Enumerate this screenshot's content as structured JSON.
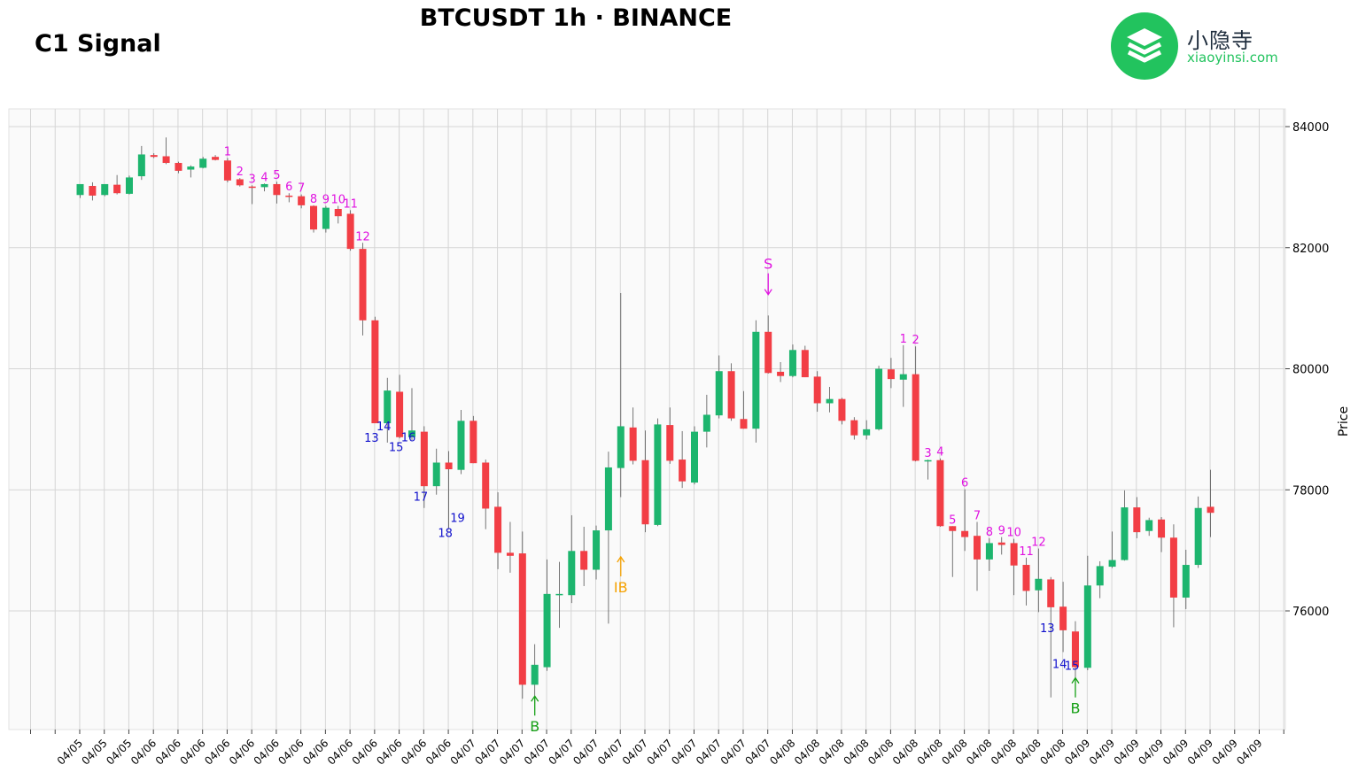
{
  "header": {
    "corner_title": "C1 Signal",
    "title": "BTCUSDT 1h · BINANCE"
  },
  "logo": {
    "cn_text": "小隐寺",
    "en_text": "xiaoyinsi.com",
    "color": "#22c35e"
  },
  "colors": {
    "up": "#1db56e",
    "down": "#f23e45",
    "count_up": "#e012e0",
    "count_down": "#1010cc",
    "buy": "#16a016",
    "sell": "#e012e0",
    "ib": "#f5a100"
  },
  "chart_data": {
    "type": "candlestick",
    "title": "BTCUSDT 1h · BINANCE",
    "ylabel": "Price",
    "ylim": [
      74200,
      84300
    ],
    "y_ticks": [
      76000,
      78000,
      80000,
      82000,
      84000
    ],
    "grid": true,
    "x_tick_labels": [
      "04/05",
      "04/05",
      "04/05",
      "04/06",
      "04/06",
      "04/06",
      "04/06",
      "04/06",
      "04/06",
      "04/06",
      "04/06",
      "04/06",
      "04/06",
      "04/06",
      "04/06",
      "04/06",
      "04/07",
      "04/07",
      "04/07",
      "04/07",
      "04/07",
      "04/07",
      "04/07",
      "04/07",
      "04/07",
      "04/07",
      "04/07",
      "04/07",
      "04/07",
      "04/08",
      "04/08",
      "04/08",
      "04/08",
      "04/08",
      "04/08",
      "04/08",
      "04/08",
      "04/08",
      "04/08",
      "04/08",
      "04/08",
      "04/09",
      "04/09",
      "04/09",
      "04/09",
      "04/09",
      "04/09",
      "04/09",
      "04/09"
    ],
    "candles": [
      {
        "o": 82870,
        "h": 83050,
        "l": 82820,
        "c": 83050
      },
      {
        "o": 83020,
        "h": 83080,
        "l": 82780,
        "c": 82860
      },
      {
        "o": 82870,
        "h": 83050,
        "l": 82850,
        "c": 83050
      },
      {
        "o": 83040,
        "h": 83200,
        "l": 82880,
        "c": 82900
      },
      {
        "o": 82890,
        "h": 83190,
        "l": 82880,
        "c": 83160
      },
      {
        "o": 83180,
        "h": 83680,
        "l": 83120,
        "c": 83540
      },
      {
        "o": 83530,
        "h": 83560,
        "l": 83480,
        "c": 83500
      },
      {
        "o": 83510,
        "h": 83820,
        "l": 83380,
        "c": 83400
      },
      {
        "o": 83400,
        "h": 83420,
        "l": 83230,
        "c": 83270
      },
      {
        "o": 83290,
        "h": 83360,
        "l": 83160,
        "c": 83340
      },
      {
        "o": 83320,
        "h": 83500,
        "l": 83310,
        "c": 83470
      },
      {
        "o": 83500,
        "h": 83530,
        "l": 83440,
        "c": 83450
      },
      {
        "o": 83440,
        "h": 83480,
        "l": 83080,
        "c": 83110
      },
      {
        "o": 83130,
        "h": 83150,
        "l": 83010,
        "c": 83030
      },
      {
        "o": 83010,
        "h": 83030,
        "l": 82720,
        "c": 83000
      },
      {
        "o": 83000,
        "h": 83060,
        "l": 82930,
        "c": 83050
      },
      {
        "o": 83050,
        "h": 83090,
        "l": 82730,
        "c": 82870
      },
      {
        "o": 82860,
        "h": 82900,
        "l": 82750,
        "c": 82850
      },
      {
        "o": 82850,
        "h": 82880,
        "l": 82650,
        "c": 82700
      },
      {
        "o": 82690,
        "h": 82700,
        "l": 82250,
        "c": 82300
      },
      {
        "o": 82310,
        "h": 82690,
        "l": 82250,
        "c": 82660
      },
      {
        "o": 82640,
        "h": 82690,
        "l": 82400,
        "c": 82520
      },
      {
        "o": 82560,
        "h": 82620,
        "l": 81950,
        "c": 81980
      },
      {
        "o": 81980,
        "h": 82080,
        "l": 80550,
        "c": 80800
      },
      {
        "o": 80800,
        "h": 80860,
        "l": 79100,
        "c": 79100
      },
      {
        "o": 79100,
        "h": 79850,
        "l": 78780,
        "c": 79640
      },
      {
        "o": 79620,
        "h": 79900,
        "l": 78850,
        "c": 78870
      },
      {
        "o": 78870,
        "h": 79680,
        "l": 78820,
        "c": 78980
      },
      {
        "o": 78960,
        "h": 79050,
        "l": 77700,
        "c": 78060
      },
      {
        "o": 78060,
        "h": 78680,
        "l": 77920,
        "c": 78450
      },
      {
        "o": 78450,
        "h": 78640,
        "l": 77360,
        "c": 78340
      },
      {
        "o": 78330,
        "h": 79320,
        "l": 78260,
        "c": 79140
      },
      {
        "o": 79140,
        "h": 79220,
        "l": 78440,
        "c": 78440
      },
      {
        "o": 78450,
        "h": 78500,
        "l": 77350,
        "c": 77690
      },
      {
        "o": 77720,
        "h": 77960,
        "l": 76690,
        "c": 76960
      },
      {
        "o": 76960,
        "h": 77470,
        "l": 76630,
        "c": 76910
      },
      {
        "o": 76950,
        "h": 77310,
        "l": 74550,
        "c": 74780
      },
      {
        "o": 74780,
        "h": 75450,
        "l": 74470,
        "c": 75110
      },
      {
        "o": 75070,
        "h": 76850,
        "l": 75010,
        "c": 76280
      },
      {
        "o": 76270,
        "h": 76810,
        "l": 75720,
        "c": 76280
      },
      {
        "o": 76260,
        "h": 77580,
        "l": 76130,
        "c": 76990
      },
      {
        "o": 76990,
        "h": 77390,
        "l": 76410,
        "c": 76680
      },
      {
        "o": 76680,
        "h": 77410,
        "l": 76520,
        "c": 77330
      },
      {
        "o": 77330,
        "h": 78630,
        "l": 75790,
        "c": 78370
      },
      {
        "o": 78360,
        "h": 81250,
        "l": 77880,
        "c": 79050
      },
      {
        "o": 79030,
        "h": 79360,
        "l": 78420,
        "c": 78480
      },
      {
        "o": 78490,
        "h": 78980,
        "l": 77300,
        "c": 77430
      },
      {
        "o": 77420,
        "h": 79180,
        "l": 77400,
        "c": 79080
      },
      {
        "o": 79070,
        "h": 79360,
        "l": 78430,
        "c": 78480
      },
      {
        "o": 78500,
        "h": 78970,
        "l": 78030,
        "c": 78140
      },
      {
        "o": 78120,
        "h": 79050,
        "l": 78090,
        "c": 78960
      },
      {
        "o": 78960,
        "h": 79570,
        "l": 78700,
        "c": 79240
      },
      {
        "o": 79230,
        "h": 80220,
        "l": 79180,
        "c": 79960
      },
      {
        "o": 79960,
        "h": 80090,
        "l": 79140,
        "c": 79180
      },
      {
        "o": 79170,
        "h": 79630,
        "l": 79010,
        "c": 79010
      },
      {
        "o": 79010,
        "h": 80800,
        "l": 78780,
        "c": 80610
      },
      {
        "o": 80610,
        "h": 80880,
        "l": 79920,
        "c": 79930
      },
      {
        "o": 79950,
        "h": 80110,
        "l": 79780,
        "c": 79880
      },
      {
        "o": 79880,
        "h": 80400,
        "l": 79860,
        "c": 80310
      },
      {
        "o": 80310,
        "h": 80380,
        "l": 79860,
        "c": 79860
      },
      {
        "o": 79870,
        "h": 79960,
        "l": 79290,
        "c": 79430
      },
      {
        "o": 79430,
        "h": 79700,
        "l": 79280,
        "c": 79500
      },
      {
        "o": 79500,
        "h": 79520,
        "l": 79080,
        "c": 79140
      },
      {
        "o": 79150,
        "h": 79200,
        "l": 78830,
        "c": 78900
      },
      {
        "o": 78900,
        "h": 79150,
        "l": 78830,
        "c": 79000
      },
      {
        "o": 79000,
        "h": 80050,
        "l": 78980,
        "c": 80000
      },
      {
        "o": 79990,
        "h": 80180,
        "l": 79680,
        "c": 79830
      },
      {
        "o": 79820,
        "h": 80390,
        "l": 79370,
        "c": 79910
      },
      {
        "o": 79910,
        "h": 80370,
        "l": 78470,
        "c": 78480
      },
      {
        "o": 78480,
        "h": 78500,
        "l": 78170,
        "c": 78490
      },
      {
        "o": 78490,
        "h": 78520,
        "l": 77390,
        "c": 77400
      },
      {
        "o": 77400,
        "h": 77400,
        "l": 76560,
        "c": 77320
      },
      {
        "o": 77320,
        "h": 78010,
        "l": 76990,
        "c": 77220
      },
      {
        "o": 77240,
        "h": 77470,
        "l": 76330,
        "c": 76850
      },
      {
        "o": 76850,
        "h": 77200,
        "l": 76660,
        "c": 77120
      },
      {
        "o": 77130,
        "h": 77220,
        "l": 76930,
        "c": 77090
      },
      {
        "o": 77120,
        "h": 77190,
        "l": 76260,
        "c": 76750
      },
      {
        "o": 76760,
        "h": 76880,
        "l": 76090,
        "c": 76330
      },
      {
        "o": 76340,
        "h": 77030,
        "l": 75980,
        "c": 76530
      },
      {
        "o": 76520,
        "h": 76560,
        "l": 74570,
        "c": 76060
      },
      {
        "o": 76070,
        "h": 76480,
        "l": 75320,
        "c": 75680
      },
      {
        "o": 75660,
        "h": 75830,
        "l": 74890,
        "c": 75070
      },
      {
        "o": 75060,
        "h": 76910,
        "l": 75020,
        "c": 76420
      },
      {
        "o": 76420,
        "h": 76820,
        "l": 76210,
        "c": 76740
      },
      {
        "o": 76730,
        "h": 77310,
        "l": 76710,
        "c": 76840
      },
      {
        "o": 76840,
        "h": 77990,
        "l": 76830,
        "c": 77710
      },
      {
        "o": 77710,
        "h": 77880,
        "l": 77200,
        "c": 77300
      },
      {
        "o": 77320,
        "h": 77540,
        "l": 77240,
        "c": 77500
      },
      {
        "o": 77510,
        "h": 77550,
        "l": 76970,
        "c": 77210
      },
      {
        "o": 77210,
        "h": 77430,
        "l": 75730,
        "c": 76220
      },
      {
        "o": 76220,
        "h": 77010,
        "l": 76030,
        "c": 76760
      },
      {
        "o": 76760,
        "h": 77890,
        "l": 76710,
        "c": 77700
      },
      {
        "o": 77720,
        "h": 78330,
        "l": 77220,
        "c": 77620
      }
    ],
    "setup_counts": [
      {
        "candle": 12,
        "label": "1",
        "side": "up"
      },
      {
        "candle": 13,
        "label": "2",
        "side": "up"
      },
      {
        "candle": 14,
        "label": "3",
        "side": "up"
      },
      {
        "candle": 15,
        "label": "4",
        "side": "up"
      },
      {
        "candle": 16,
        "label": "5",
        "side": "up"
      },
      {
        "candle": 17,
        "label": "6",
        "side": "up"
      },
      {
        "candle": 18,
        "label": "7",
        "side": "up"
      },
      {
        "candle": 19,
        "label": "8",
        "side": "up"
      },
      {
        "candle": 20,
        "label": "9",
        "side": "up"
      },
      {
        "candle": 21,
        "label": "10",
        "side": "up"
      },
      {
        "candle": 22,
        "label": "11",
        "side": "up"
      },
      {
        "candle": 23,
        "label": "12",
        "side": "up"
      },
      {
        "candle": 67,
        "label": "1",
        "side": "up"
      },
      {
        "candle": 68,
        "label": "2",
        "side": "up"
      },
      {
        "candle": 69,
        "label": "3",
        "side": "up"
      },
      {
        "candle": 70,
        "label": "4",
        "side": "up"
      },
      {
        "candle": 71,
        "label": "5",
        "side": "up"
      },
      {
        "candle": 72,
        "label": "6",
        "side": "up"
      },
      {
        "candle": 73,
        "label": "7",
        "side": "up"
      },
      {
        "candle": 74,
        "label": "8",
        "side": "up"
      },
      {
        "candle": 75,
        "label": "9",
        "side": "up"
      },
      {
        "candle": 76,
        "label": "10",
        "side": "up"
      },
      {
        "candle": 77,
        "label": "11",
        "side": "up"
      },
      {
        "candle": 78,
        "label": "12",
        "side": "up"
      }
    ],
    "countdown_counts": [
      {
        "candle": 24,
        "label": "13",
        "price": 78790
      },
      {
        "candle": 25,
        "label": "14",
        "price": 78980
      },
      {
        "candle": 26,
        "label": "15",
        "price": 78640
      },
      {
        "candle": 27,
        "label": "16",
        "price": 78800
      },
      {
        "candle": 28,
        "label": "17",
        "price": 77820
      },
      {
        "candle": 30,
        "label": "18",
        "price": 77220
      },
      {
        "candle": 31,
        "label": "19",
        "price": 77470
      },
      {
        "candle": 79,
        "label": "13",
        "price": 75650
      },
      {
        "candle": 80,
        "label": "14",
        "price": 75060
      },
      {
        "candle": 81,
        "label": "15",
        "price": 75030
      }
    ],
    "signals": [
      {
        "candle": 37,
        "label": "B",
        "type": "buy",
        "price": 74300
      },
      {
        "candle": 44,
        "label": "IB",
        "type": "ib",
        "price": 76600
      },
      {
        "candle": 56,
        "label": "S",
        "type": "sell",
        "price": 81650
      },
      {
        "candle": 81,
        "label": "B",
        "type": "buy",
        "price": 74600
      }
    ]
  }
}
